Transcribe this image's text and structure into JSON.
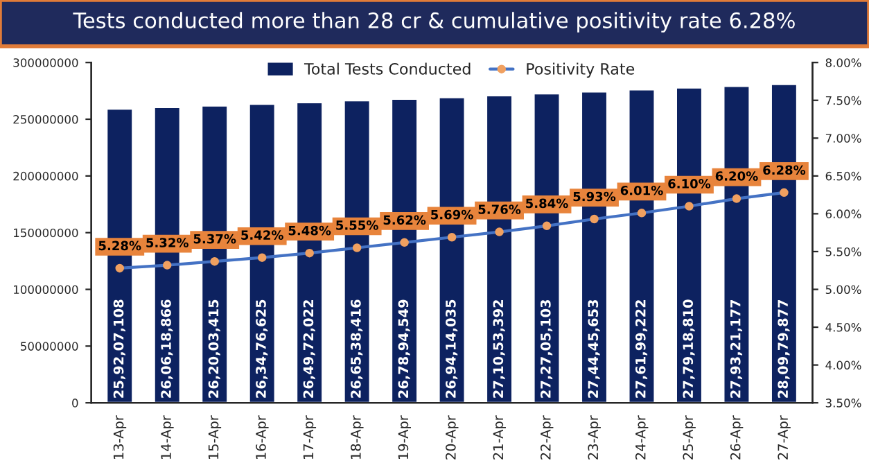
{
  "chart_data": {
    "type": "bar",
    "title": "Tests conducted more than 28 cr & cumulative positivity rate 6.28%",
    "categories": [
      "13-Apr",
      "14-Apr",
      "15-Apr",
      "16-Apr",
      "17-Apr",
      "18-Apr",
      "19-Apr",
      "20-Apr",
      "21-Apr",
      "22-Apr",
      "23-Apr",
      "24-Apr",
      "25-Apr",
      "26-Apr",
      "27-Apr"
    ],
    "series": [
      {
        "name": "Total Tests Conducted",
        "color": "#0d2260",
        "values": [
          259207108,
          260618866,
          262003415,
          263476625,
          264972022,
          266538416,
          267894549,
          269414035,
          271053392,
          272705103,
          274445653,
          276199222,
          277918810,
          279321177,
          280979877
        ],
        "value_labels": [
          "25,92,07,108",
          "26,06,18,866",
          "26,20,03,415",
          "26,34,76,625",
          "26,49,72,022",
          "26,65,38,416",
          "26,78,94,549",
          "26,94,14,035",
          "27,10,53,392",
          "27,27,05,103",
          "27,44,45,653",
          "27,61,99,222",
          "27,79,18,810",
          "27,93,21,177",
          "28,09,79,877"
        ]
      },
      {
        "name": "Positivity Rate",
        "type": "line",
        "axis": "y2",
        "color": "#4472c4",
        "marker": "circle",
        "values": [
          5.28,
          5.32,
          5.37,
          5.42,
          5.48,
          5.55,
          5.62,
          5.69,
          5.76,
          5.84,
          5.93,
          6.01,
          6.1,
          6.2,
          6.28
        ],
        "value_labels": [
          "5.28%",
          "5.32%",
          "5.37%",
          "5.42%",
          "5.48%",
          "5.55%",
          "5.62%",
          "5.69%",
          "5.76%",
          "5.84%",
          "5.93%",
          "6.01%",
          "6.10%",
          "6.20%",
          "6.28%"
        ]
      }
    ],
    "ylim": [
      0,
      300000000
    ],
    "yticks": [
      0,
      50000000,
      100000000,
      150000000,
      200000000,
      250000000,
      300000000
    ],
    "y2lim": [
      3.5,
      8.0
    ],
    "y2ticks": [
      {
        "value": 3.5,
        "label": "3.50%"
      },
      {
        "value": 4.0,
        "label": "4.00%"
      },
      {
        "value": 4.5,
        "label": "4.50%"
      },
      {
        "value": 5.0,
        "label": "5.00%"
      },
      {
        "value": 5.5,
        "label": "5.50%"
      },
      {
        "value": 6.0,
        "label": "6.00%"
      },
      {
        "value": 6.5,
        "label": "6.50%"
      },
      {
        "value": 7.0,
        "label": "7.00%"
      },
      {
        "value": 7.5,
        "label": "7.50%"
      },
      {
        "value": 8.0,
        "label": "8.00%"
      }
    ],
    "legend": "top",
    "grid": false
  }
}
